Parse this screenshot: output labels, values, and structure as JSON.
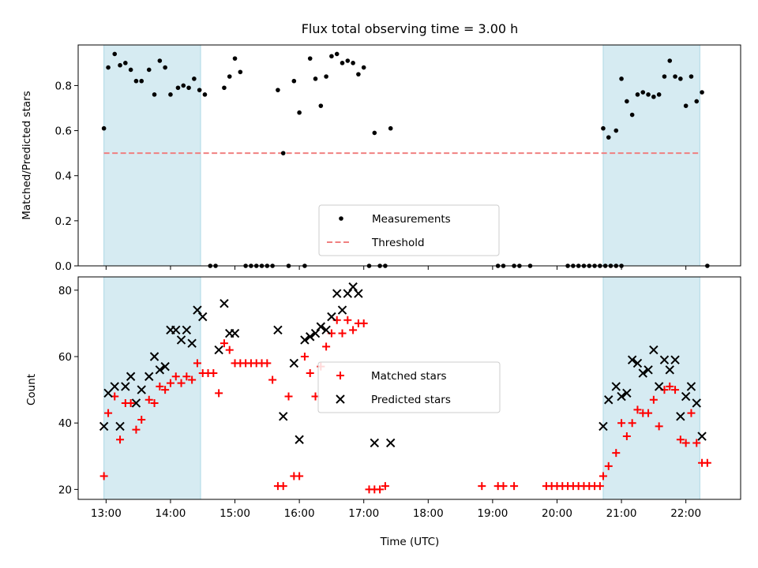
{
  "chart_data": [
    {
      "type": "scatter",
      "title": "Flux total observing time = 3.00 h",
      "xlabel": "",
      "ylabel": "Matched/Predicted stars",
      "xlim": [
        "12:34",
        "22:51"
      ],
      "ylim": [
        0,
        0.98
      ],
      "yticks": [
        0.0,
        0.2,
        0.4,
        0.6,
        0.8
      ],
      "ytick_labels": [
        "0.0",
        "0.2",
        "0.4",
        "0.6",
        "0.8"
      ],
      "shaded_intervals": [
        [
          "12:58",
          "14:28"
        ],
        [
          "20:43",
          "22:13"
        ]
      ],
      "shade_color": "#add8e6",
      "threshold": {
        "name": "Threshold",
        "value": 0.5,
        "x_range": [
          "12:58",
          "22:13"
        ],
        "color": "#f08080",
        "style": "dashed"
      },
      "series": [
        {
          "name": "Measurements",
          "color": "#000000",
          "marker": "dot",
          "points": [
            [
              "12:58",
              0.61
            ],
            [
              "13:02",
              0.88
            ],
            [
              "13:08",
              0.94
            ],
            [
              "13:13",
              0.89
            ],
            [
              "13:18",
              0.9
            ],
            [
              "13:23",
              0.87
            ],
            [
              "13:28",
              0.82
            ],
            [
              "13:33",
              0.82
            ],
            [
              "13:40",
              0.87
            ],
            [
              "13:45",
              0.76
            ],
            [
              "13:50",
              0.91
            ],
            [
              "13:55",
              0.88
            ],
            [
              "14:00",
              0.76
            ],
            [
              "14:07",
              0.79
            ],
            [
              "14:12",
              0.8
            ],
            [
              "14:17",
              0.79
            ],
            [
              "14:22",
              0.83
            ],
            [
              "14:27",
              0.78
            ],
            [
              "14:32",
              0.76
            ],
            [
              "14:37",
              0.0
            ],
            [
              "14:42",
              0.0
            ],
            [
              "14:50",
              0.79
            ],
            [
              "14:55",
              0.84
            ],
            [
              "15:00",
              0.92
            ],
            [
              "15:05",
              0.86
            ],
            [
              "15:10",
              0.0
            ],
            [
              "15:15",
              0.0
            ],
            [
              "15:20",
              0.0
            ],
            [
              "15:25",
              0.0
            ],
            [
              "15:30",
              0.0
            ],
            [
              "15:35",
              0.0
            ],
            [
              "15:40",
              0.78
            ],
            [
              "15:45",
              0.5
            ],
            [
              "15:50",
              0.0
            ],
            [
              "15:55",
              0.82
            ],
            [
              "16:00",
              0.68
            ],
            [
              "16:05",
              0.0
            ],
            [
              "16:10",
              0.92
            ],
            [
              "16:15",
              0.83
            ],
            [
              "16:20",
              0.71
            ],
            [
              "16:25",
              0.84
            ],
            [
              "16:30",
              0.93
            ],
            [
              "16:35",
              0.94
            ],
            [
              "16:40",
              0.9
            ],
            [
              "16:45",
              0.91
            ],
            [
              "16:50",
              0.9
            ],
            [
              "16:55",
              0.85
            ],
            [
              "17:00",
              0.88
            ],
            [
              "17:05",
              0.0
            ],
            [
              "17:10",
              0.59
            ],
            [
              "17:15",
              0.0
            ],
            [
              "17:20",
              0.0
            ],
            [
              "17:25",
              0.61
            ],
            [
              "19:05",
              0.0
            ],
            [
              "19:10",
              0.0
            ],
            [
              "19:20",
              0.0
            ],
            [
              "19:25",
              0.0
            ],
            [
              "19:35",
              0.0
            ],
            [
              "20:10",
              0.0
            ],
            [
              "20:15",
              0.0
            ],
            [
              "20:20",
              0.0
            ],
            [
              "20:25",
              0.0
            ],
            [
              "20:30",
              0.0
            ],
            [
              "20:35",
              0.0
            ],
            [
              "20:40",
              0.0
            ],
            [
              "20:45",
              0.0
            ],
            [
              "20:50",
              0.0
            ],
            [
              "20:55",
              0.0
            ],
            [
              "21:00",
              0.0
            ],
            [
              "20:43",
              0.61
            ],
            [
              "20:48",
              0.57
            ],
            [
              "20:55",
              0.6
            ],
            [
              "21:00",
              0.83
            ],
            [
              "21:05",
              0.73
            ],
            [
              "21:10",
              0.67
            ],
            [
              "21:15",
              0.76
            ],
            [
              "21:20",
              0.77
            ],
            [
              "21:25",
              0.76
            ],
            [
              "21:30",
              0.75
            ],
            [
              "21:35",
              0.76
            ],
            [
              "21:40",
              0.84
            ],
            [
              "21:45",
              0.91
            ],
            [
              "21:50",
              0.84
            ],
            [
              "21:55",
              0.83
            ],
            [
              "22:00",
              0.71
            ],
            [
              "22:05",
              0.84
            ],
            [
              "22:10",
              0.73
            ],
            [
              "22:15",
              0.77
            ],
            [
              "22:20",
              0.0
            ]
          ]
        }
      ],
      "legend": {
        "position": "lower-center",
        "entries": [
          "Measurements",
          "Threshold"
        ]
      }
    },
    {
      "type": "scatter",
      "title": "",
      "xlabel": "Time (UTC)",
      "ylabel": "Count",
      "xlim": [
        "12:34",
        "22:51"
      ],
      "ylim": [
        17,
        84
      ],
      "yticks": [
        20,
        40,
        60,
        80
      ],
      "ytick_labels": [
        "20",
        "40",
        "60",
        "80"
      ],
      "xticks": [
        "13:00",
        "14:00",
        "15:00",
        "16:00",
        "17:00",
        "18:00",
        "19:00",
        "20:00",
        "21:00",
        "22:00"
      ],
      "shaded_intervals": [
        [
          "12:58",
          "14:28"
        ],
        [
          "20:43",
          "22:13"
        ]
      ],
      "shade_color": "#add8e6",
      "series": [
        {
          "name": "Matched stars",
          "color": "#ff0000",
          "marker": "plus",
          "points": [
            [
              "12:58",
              24
            ],
            [
              "13:02",
              43
            ],
            [
              "13:08",
              48
            ],
            [
              "13:13",
              35
            ],
            [
              "13:18",
              46
            ],
            [
              "13:23",
              46
            ],
            [
              "13:28",
              38
            ],
            [
              "13:33",
              41
            ],
            [
              "13:40",
              47
            ],
            [
              "13:45",
              46
            ],
            [
              "13:50",
              51
            ],
            [
              "13:55",
              50
            ],
            [
              "14:00",
              52
            ],
            [
              "14:05",
              54
            ],
            [
              "14:10",
              52
            ],
            [
              "14:15",
              54
            ],
            [
              "14:20",
              53
            ],
            [
              "14:25",
              58
            ],
            [
              "14:30",
              55
            ],
            [
              "14:35",
              55
            ],
            [
              "14:40",
              55
            ],
            [
              "14:45",
              49
            ],
            [
              "14:50",
              64
            ],
            [
              "14:55",
              62
            ],
            [
              "15:00",
              58
            ],
            [
              "15:05",
              58
            ],
            [
              "15:10",
              58
            ],
            [
              "15:15",
              58
            ],
            [
              "15:20",
              58
            ],
            [
              "15:25",
              58
            ],
            [
              "15:30",
              58
            ],
            [
              "15:35",
              53
            ],
            [
              "15:40",
              21
            ],
            [
              "15:45",
              21
            ],
            [
              "15:50",
              48
            ],
            [
              "15:55",
              24
            ],
            [
              "16:00",
              24
            ],
            [
              "16:05",
              60
            ],
            [
              "16:10",
              55
            ],
            [
              "16:15",
              48
            ],
            [
              "16:20",
              57
            ],
            [
              "16:25",
              63
            ],
            [
              "16:30",
              67
            ],
            [
              "16:35",
              71
            ],
            [
              "16:40",
              67
            ],
            [
              "16:45",
              71
            ],
            [
              "16:50",
              68
            ],
            [
              "16:55",
              70
            ],
            [
              "17:00",
              70
            ],
            [
              "17:05",
              20
            ],
            [
              "17:10",
              20
            ],
            [
              "17:15",
              20
            ],
            [
              "17:20",
              21
            ],
            [
              "18:50",
              21
            ],
            [
              "19:05",
              21
            ],
            [
              "19:10",
              21
            ],
            [
              "19:20",
              21
            ],
            [
              "19:50",
              21
            ],
            [
              "19:55",
              21
            ],
            [
              "20:00",
              21
            ],
            [
              "20:05",
              21
            ],
            [
              "20:10",
              21
            ],
            [
              "20:15",
              21
            ],
            [
              "20:20",
              21
            ],
            [
              "20:25",
              21
            ],
            [
              "20:30",
              21
            ],
            [
              "20:35",
              21
            ],
            [
              "20:40",
              21
            ],
            [
              "20:43",
              24
            ],
            [
              "20:48",
              27
            ],
            [
              "20:55",
              31
            ],
            [
              "21:00",
              40
            ],
            [
              "21:05",
              36
            ],
            [
              "21:10",
              40
            ],
            [
              "21:15",
              44
            ],
            [
              "21:20",
              43
            ],
            [
              "21:25",
              43
            ],
            [
              "21:30",
              47
            ],
            [
              "21:35",
              39
            ],
            [
              "21:40",
              50
            ],
            [
              "21:45",
              51
            ],
            [
              "21:50",
              50
            ],
            [
              "21:55",
              35
            ],
            [
              "22:00",
              34
            ],
            [
              "22:05",
              43
            ],
            [
              "22:10",
              34
            ],
            [
              "22:15",
              28
            ],
            [
              "22:20",
              28
            ]
          ]
        },
        {
          "name": "Predicted stars",
          "color": "#000000",
          "marker": "x",
          "points": [
            [
              "12:58",
              39
            ],
            [
              "13:02",
              49
            ],
            [
              "13:08",
              51
            ],
            [
              "13:13",
              39
            ],
            [
              "13:18",
              51
            ],
            [
              "13:23",
              54
            ],
            [
              "13:28",
              46
            ],
            [
              "13:33",
              50
            ],
            [
              "13:40",
              54
            ],
            [
              "13:45",
              60
            ],
            [
              "13:50",
              56
            ],
            [
              "13:55",
              57
            ],
            [
              "14:00",
              68
            ],
            [
              "14:05",
              68
            ],
            [
              "14:10",
              65
            ],
            [
              "14:15",
              68
            ],
            [
              "14:20",
              64
            ],
            [
              "14:25",
              74
            ],
            [
              "14:30",
              72
            ],
            [
              "14:45",
              62
            ],
            [
              "14:50",
              76
            ],
            [
              "14:55",
              67
            ],
            [
              "15:00",
              67
            ],
            [
              "15:40",
              68
            ],
            [
              "15:45",
              42
            ],
            [
              "15:55",
              58
            ],
            [
              "16:00",
              35
            ],
            [
              "16:05",
              65
            ],
            [
              "16:10",
              66
            ],
            [
              "16:15",
              67
            ],
            [
              "16:20",
              69
            ],
            [
              "16:25",
              68
            ],
            [
              "16:30",
              72
            ],
            [
              "16:35",
              79
            ],
            [
              "16:40",
              74
            ],
            [
              "16:45",
              79
            ],
            [
              "16:50",
              81
            ],
            [
              "16:55",
              79
            ],
            [
              "17:10",
              34
            ],
            [
              "17:25",
              34
            ],
            [
              "20:43",
              39
            ],
            [
              "20:48",
              47
            ],
            [
              "20:55",
              51
            ],
            [
              "21:00",
              48
            ],
            [
              "21:05",
              49
            ],
            [
              "21:10",
              59
            ],
            [
              "21:15",
              58
            ],
            [
              "21:20",
              55
            ],
            [
              "21:25",
              56
            ],
            [
              "21:30",
              62
            ],
            [
              "21:35",
              51
            ],
            [
              "21:40",
              59
            ],
            [
              "21:45",
              56
            ],
            [
              "21:50",
              59
            ],
            [
              "21:55",
              42
            ],
            [
              "22:00",
              48
            ],
            [
              "22:05",
              51
            ],
            [
              "22:10",
              46
            ],
            [
              "22:15",
              36
            ]
          ]
        }
      ],
      "legend": {
        "position": "center",
        "entries": [
          "Matched stars",
          "Predicted stars"
        ]
      }
    }
  ]
}
